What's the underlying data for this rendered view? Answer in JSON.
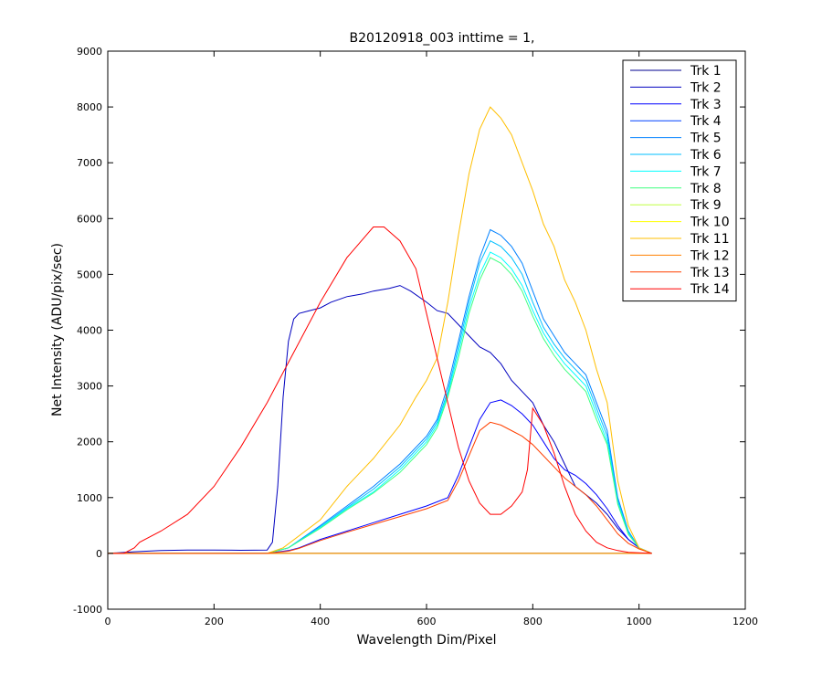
{
  "chart_data": {
    "type": "line",
    "title": "B20120918_003 inttime = 1,",
    "xlabel": "Wavelength Dim/Pixel",
    "ylabel": "Net Intensity (ADU/pix/sec)",
    "xlim": [
      0,
      1200
    ],
    "ylim": [
      -1000,
      9000
    ],
    "xticks": [
      0,
      200,
      400,
      600,
      800,
      1000,
      1200
    ],
    "yticks": [
      -1000,
      0,
      1000,
      2000,
      3000,
      4000,
      5000,
      6000,
      7000,
      8000,
      9000
    ],
    "grid": false,
    "legend_position": "top-right",
    "series": [
      {
        "name": "Trk 1",
        "color": "#00008f",
        "x": [
          0,
          100,
          200,
          300,
          400,
          500,
          600,
          700,
          800,
          900,
          1000,
          1024
        ],
        "y": [
          0,
          0,
          0,
          0,
          0,
          0,
          0,
          0,
          0,
          0,
          0,
          0
        ]
      },
      {
        "name": "Trk 2",
        "color": "#0000bf",
        "x": [
          0,
          50,
          100,
          150,
          200,
          250,
          300,
          310,
          320,
          330,
          340,
          350,
          360,
          380,
          400,
          420,
          450,
          480,
          500,
          530,
          550,
          570,
          600,
          620,
          640,
          660,
          680,
          700,
          720,
          740,
          760,
          780,
          800,
          820,
          840,
          860,
          880,
          900,
          920,
          940,
          960,
          980,
          1000,
          1024
        ],
        "y": [
          0,
          30,
          50,
          60,
          60,
          55,
          60,
          200,
          1200,
          2800,
          3800,
          4200,
          4300,
          4350,
          4400,
          4500,
          4600,
          4650,
          4700,
          4750,
          4800,
          4700,
          4500,
          4350,
          4300,
          4100,
          3900,
          3700,
          3600,
          3400,
          3100,
          2900,
          2700,
          2300,
          2000,
          1600,
          1200,
          1050,
          900,
          700,
          450,
          250,
          100,
          0
        ]
      },
      {
        "name": "Trk 3",
        "color": "#0000ff",
        "x": [
          0,
          100,
          200,
          300,
          340,
          360,
          400,
          450,
          500,
          550,
          600,
          640,
          660,
          680,
          700,
          720,
          740,
          760,
          780,
          800,
          820,
          840,
          860,
          880,
          900,
          920,
          940,
          960,
          980,
          1000,
          1024
        ],
        "y": [
          0,
          0,
          0,
          0,
          50,
          100,
          250,
          400,
          550,
          700,
          850,
          1000,
          1400,
          1900,
          2400,
          2700,
          2750,
          2650,
          2500,
          2300,
          2000,
          1700,
          1500,
          1400,
          1250,
          1050,
          800,
          500,
          250,
          100,
          0
        ]
      },
      {
        "name": "Trk 4",
        "color": "#0040ff",
        "x": [
          0,
          100,
          200,
          300,
          400,
          500,
          600,
          700,
          800,
          900,
          1000,
          1024
        ],
        "y": [
          0,
          0,
          0,
          0,
          0,
          0,
          0,
          0,
          0,
          0,
          0,
          0
        ]
      },
      {
        "name": "Trk 5",
        "color": "#0080ff",
        "x": [
          0,
          100,
          200,
          300,
          340,
          400,
          450,
          500,
          550,
          600,
          620,
          640,
          660,
          680,
          700,
          720,
          740,
          760,
          780,
          800,
          820,
          840,
          860,
          880,
          900,
          920,
          940,
          960,
          980,
          1000,
          1024
        ],
        "y": [
          0,
          0,
          0,
          0,
          100,
          500,
          850,
          1200,
          1600,
          2100,
          2400,
          3000,
          3800,
          4600,
          5300,
          5800,
          5700,
          5500,
          5200,
          4700,
          4200,
          3900,
          3600,
          3400,
          3200,
          2700,
          2200,
          1000,
          400,
          100,
          0
        ]
      },
      {
        "name": "Trk 6",
        "color": "#00bfff",
        "x": [
          0,
          100,
          200,
          300,
          340,
          400,
          450,
          500,
          550,
          600,
          620,
          640,
          660,
          680,
          700,
          720,
          740,
          760,
          780,
          800,
          820,
          840,
          860,
          880,
          900,
          920,
          940,
          960,
          980,
          1000,
          1024
        ],
        "y": [
          0,
          0,
          0,
          0,
          100,
          480,
          820,
          1150,
          1550,
          2050,
          2350,
          2900,
          3700,
          4500,
          5200,
          5600,
          5500,
          5300,
          5000,
          4500,
          4050,
          3750,
          3500,
          3300,
          3100,
          2600,
          2100,
          950,
          380,
          100,
          0
        ]
      },
      {
        "name": "Trk 7",
        "color": "#00ffff",
        "x": [
          0,
          100,
          200,
          300,
          340,
          400,
          450,
          500,
          550,
          600,
          620,
          640,
          660,
          680,
          700,
          720,
          740,
          760,
          780,
          800,
          820,
          840,
          860,
          880,
          900,
          920,
          940,
          960,
          980,
          1000,
          1024
        ],
        "y": [
          0,
          0,
          0,
          0,
          100,
          460,
          800,
          1100,
          1500,
          2000,
          2300,
          2850,
          3600,
          4400,
          5000,
          5400,
          5300,
          5100,
          4800,
          4350,
          3950,
          3650,
          3400,
          3200,
          3000,
          2500,
          2000,
          900,
          350,
          100,
          0
        ]
      },
      {
        "name": "Trk 8",
        "color": "#40ff80",
        "x": [
          0,
          100,
          200,
          300,
          340,
          400,
          450,
          500,
          550,
          600,
          620,
          640,
          660,
          680,
          700,
          720,
          740,
          760,
          780,
          800,
          820,
          840,
          860,
          880,
          900,
          920,
          940,
          960,
          980,
          1000,
          1024
        ],
        "y": [
          0,
          0,
          0,
          0,
          100,
          450,
          780,
          1080,
          1450,
          1950,
          2250,
          2800,
          3500,
          4300,
          4900,
          5300,
          5200,
          5000,
          4700,
          4250,
          3850,
          3550,
          3300,
          3100,
          2900,
          2400,
          1950,
          880,
          340,
          100,
          0
        ]
      },
      {
        "name": "Trk 9",
        "color": "#bfff40",
        "x": [
          0,
          100,
          200,
          300,
          400,
          500,
          600,
          700,
          800,
          900,
          1000,
          1024
        ],
        "y": [
          0,
          0,
          0,
          0,
          0,
          0,
          0,
          0,
          0,
          0,
          0,
          0
        ]
      },
      {
        "name": "Trk 10",
        "color": "#ffff00",
        "x": [
          0,
          100,
          200,
          300,
          400,
          500,
          600,
          700,
          800,
          900,
          1000,
          1024
        ],
        "y": [
          0,
          0,
          0,
          0,
          0,
          0,
          0,
          0,
          0,
          0,
          0,
          0
        ]
      },
      {
        "name": "Trk 11",
        "color": "#ffbf00",
        "x": [
          0,
          100,
          200,
          300,
          330,
          400,
          450,
          500,
          550,
          580,
          600,
          620,
          640,
          660,
          680,
          700,
          720,
          740,
          760,
          780,
          800,
          820,
          840,
          860,
          880,
          900,
          920,
          940,
          960,
          980,
          1000,
          1024
        ],
        "y": [
          0,
          0,
          0,
          0,
          100,
          600,
          1200,
          1700,
          2300,
          2800,
          3100,
          3500,
          4500,
          5700,
          6800,
          7600,
          8000,
          7800,
          7500,
          7000,
          6500,
          5900,
          5500,
          4900,
          4500,
          4000,
          3300,
          2700,
          1300,
          500,
          100,
          0
        ]
      },
      {
        "name": "Trk 12",
        "color": "#ff8000",
        "x": [
          0,
          100,
          200,
          300,
          400,
          500,
          600,
          700,
          800,
          900,
          1000,
          1024
        ],
        "y": [
          0,
          0,
          0,
          0,
          0,
          0,
          0,
          0,
          0,
          0,
          0,
          0
        ]
      },
      {
        "name": "Trk 13",
        "color": "#ff4000",
        "x": [
          0,
          100,
          200,
          300,
          340,
          360,
          400,
          450,
          500,
          550,
          600,
          640,
          660,
          680,
          700,
          720,
          740,
          760,
          780,
          800,
          820,
          840,
          860,
          880,
          900,
          920,
          940,
          960,
          980,
          1000,
          1024
        ],
        "y": [
          0,
          0,
          0,
          0,
          40,
          90,
          230,
          380,
          520,
          660,
          800,
          950,
          1300,
          1750,
          2200,
          2350,
          2300,
          2200,
          2100,
          1950,
          1750,
          1550,
          1350,
          1200,
          1050,
          850,
          600,
          350,
          180,
          80,
          0
        ]
      },
      {
        "name": "Trk 14",
        "color": "#ff0000",
        "x": [
          0,
          30,
          50,
          60,
          100,
          150,
          200,
          250,
          300,
          350,
          400,
          450,
          500,
          520,
          550,
          580,
          600,
          620,
          640,
          660,
          680,
          700,
          720,
          740,
          760,
          780,
          790,
          800,
          820,
          840,
          860,
          880,
          900,
          920,
          940,
          960,
          980,
          1000,
          1024
        ],
        "y": [
          0,
          0,
          100,
          200,
          400,
          700,
          1200,
          1900,
          2700,
          3600,
          4500,
          5300,
          5850,
          5850,
          5600,
          5100,
          4300,
          3500,
          2700,
          1900,
          1300,
          900,
          700,
          700,
          850,
          1100,
          1500,
          2600,
          2300,
          1800,
          1200,
          700,
          400,
          200,
          100,
          50,
          20,
          10,
          0
        ]
      }
    ]
  }
}
